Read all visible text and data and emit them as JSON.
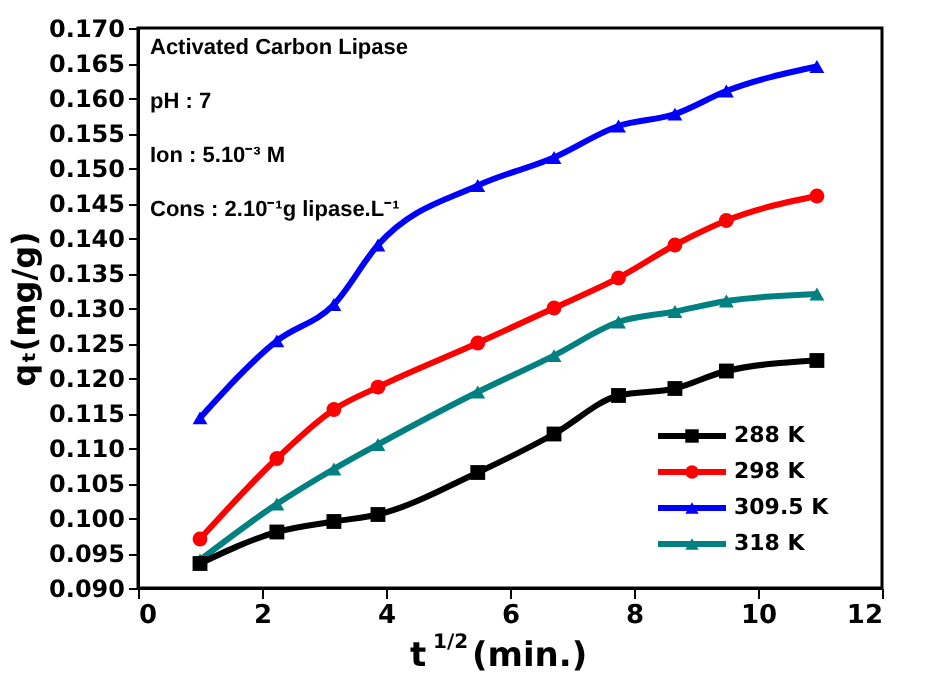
{
  "chart_data": {
    "type": "line",
    "xlabel": "t$^{1/2}$(min.)",
    "ylabel": "qₜ(mg/g)",
    "x": [
      1,
      2.24,
      3.16,
      3.87,
      5.48,
      6.71,
      7.75,
      8.66,
      9.49,
      10.95
    ],
    "series": [
      {
        "name": "288 K",
        "color": "#000000",
        "marker": "square",
        "values": [
          0.0935,
          0.098,
          0.0995,
          0.1005,
          0.1065,
          0.112,
          0.1175,
          0.1185,
          0.121,
          0.1225
        ]
      },
      {
        "name": "298 K",
        "color": "#ff0000",
        "marker": "circle",
        "values": [
          0.097,
          0.1085,
          0.1155,
          0.1187,
          0.125,
          0.13,
          0.1343,
          0.139,
          0.1425,
          0.146
        ]
      },
      {
        "name": "309.5 K",
        "color": "#0000ff",
        "marker": "triangle",
        "values": [
          0.1143,
          0.1253,
          0.1305,
          0.139,
          0.1475,
          0.1515,
          0.156,
          0.1577,
          0.161,
          0.1645
        ]
      },
      {
        "name": "318 K",
        "color": "#008080",
        "marker": "triangle",
        "values": [
          0.094,
          0.102,
          0.107,
          0.1105,
          0.118,
          0.1232,
          0.128,
          0.1295,
          0.131,
          0.132
        ]
      }
    ],
    "xlim": [
      0,
      12
    ],
    "xticks": [
      0,
      2,
      4,
      6,
      8,
      10,
      12
    ],
    "ylim": [
      0.09,
      0.17
    ],
    "yticks": [
      {
        "value": 0.09,
        "label": "0.090"
      },
      0.095,
      {
        "value": 0.1,
        "label": "0.100"
      },
      0.105,
      {
        "value": 0.11,
        "label": "0.110"
      },
      0.115,
      {
        "value": 0.12,
        "label": "0.120"
      },
      0.125,
      {
        "value": 0.13,
        "label": "0.130"
      },
      0.135,
      {
        "value": 0.14,
        "label": "0.140"
      },
      0.145,
      {
        "value": 0.15,
        "label": "0.150"
      },
      0.155,
      {
        "value": 0.16,
        "label": "0.160"
      },
      0.165,
      {
        "value": 0.17,
        "label": "0.170"
      }
    ],
    "annotations": [
      "Activated Carbon Lipase",
      "pH : 7",
      "Ion : 5.10⁻³ M",
      "Cons : 2.10⁻¹g lipase.L⁻¹"
    ],
    "legend": "bottom right",
    "grid": false
  }
}
